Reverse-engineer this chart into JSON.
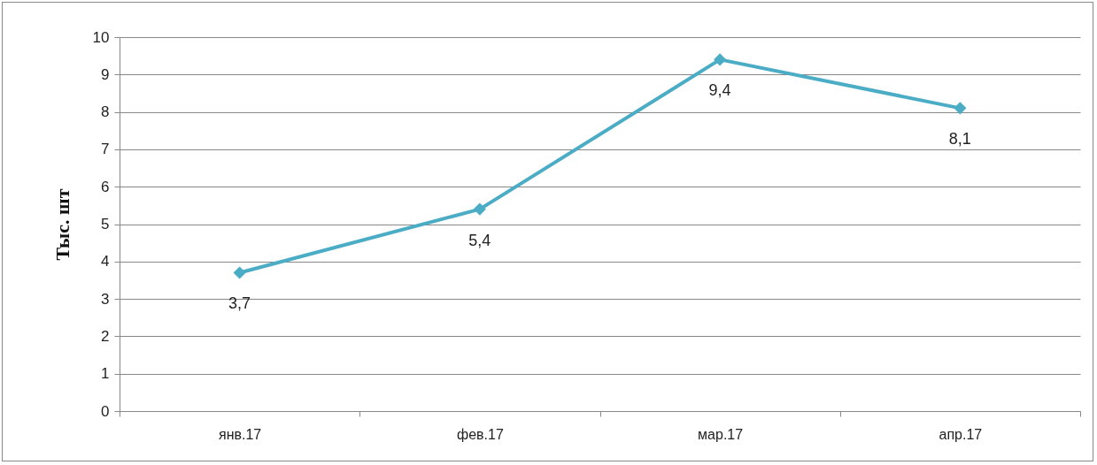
{
  "chart_data": {
    "type": "line",
    "ylabel": "Тыс. шт",
    "categories": [
      "янв.17",
      "фев.17",
      "мар.17",
      "апр.17"
    ],
    "series": [
      {
        "color": "#4bacc6",
        "values": [
          3.7,
          5.4,
          9.4,
          8.1
        ],
        "value_labels": [
          "3,7",
          "5,4",
          "9,4",
          "8,1"
        ]
      }
    ],
    "ylim": [
      0,
      10
    ],
    "yticks": [
      0,
      1,
      2,
      3,
      4,
      5,
      6,
      7,
      8,
      9,
      10
    ],
    "grid": "y",
    "marker": "diamond",
    "line_style": "solid",
    "legend": false
  }
}
